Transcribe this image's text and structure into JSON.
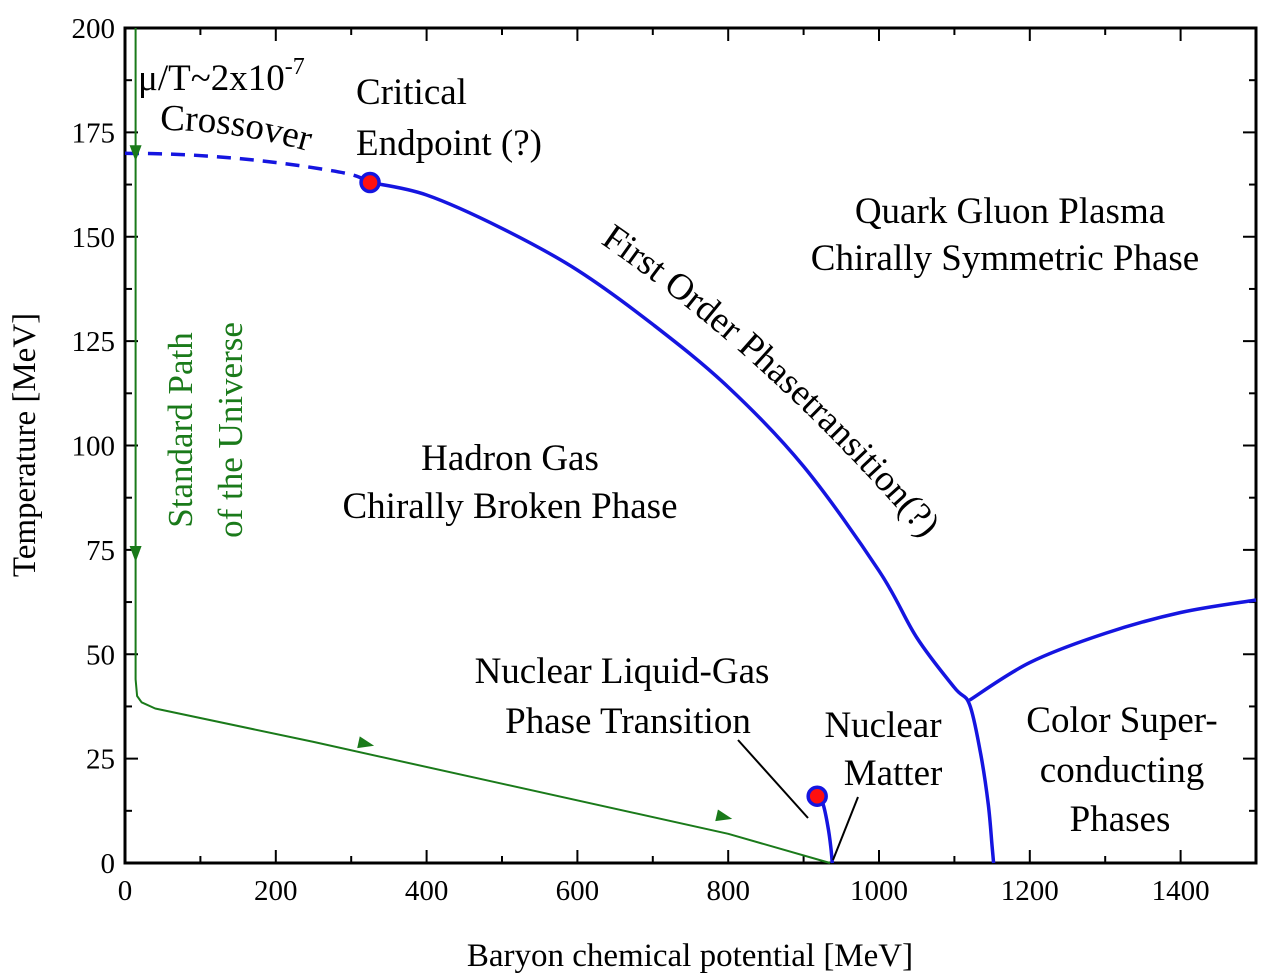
{
  "chart_data": {
    "type": "line",
    "xlabel": "Baryon chemical potential [MeV]",
    "ylabel": "Temperature [MeV]",
    "xlim": [
      0,
      1500
    ],
    "ylim": [
      0,
      200
    ],
    "xticks": [
      0,
      200,
      400,
      600,
      800,
      1000,
      1200,
      1400
    ],
    "yticks": [
      0,
      25,
      50,
      75,
      100,
      125,
      150,
      175,
      200
    ],
    "grid": false,
    "series": [
      {
        "style": "dashed",
        "color": "#1515e0",
        "x": [
          0,
          60,
          120,
          180,
          240,
          300,
          325
        ],
        "y": [
          170,
          169.8,
          169.2,
          168.2,
          166.8,
          164.9,
          163
        ]
      },
      {
        "style": "solid",
        "color": "#1515e0",
        "x": [
          325,
          400,
          500,
          600,
          700,
          800,
          900,
          1000,
          1050,
          1100,
          1120,
          1135,
          1145,
          1150,
          1152
        ],
        "y": [
          163,
          160,
          152,
          142,
          129,
          114,
          95,
          70,
          54,
          42,
          38,
          26,
          14,
          4,
          0
        ]
      },
      {
        "style": "solid",
        "color": "#1515e0",
        "x": [
          1120,
          1200,
          1300,
          1400,
          1500
        ],
        "y": [
          39,
          48,
          55,
          60,
          63
        ]
      },
      {
        "style": "solid",
        "color": "#1515e0",
        "x": [
          920,
          926,
          932,
          936,
          938
        ],
        "y": [
          16,
          14,
          9,
          4,
          0
        ]
      },
      {
        "style": "solid-arrows",
        "color": "#1a7a1a",
        "x": [
          14,
          14,
          14,
          14,
          16,
          22,
          40,
          250,
          500,
          800,
          935
        ],
        "y": [
          200,
          170,
          75,
          44,
          40,
          38.5,
          37,
          29,
          19,
          7,
          0
        ]
      }
    ],
    "points": [
      {
        "x": 325,
        "y": 163
      },
      {
        "x": 918,
        "y": 16
      }
    ],
    "annotations": {
      "mu_prefix": "μ/T~2x10",
      "mu_exp": "-7",
      "crossover": "Crossover",
      "critical_1": "Critical",
      "critical_2": "Endpoint (?)",
      "qgp_1": "Quark Gluon Plasma",
      "qgp_2": "Chirally Symmetric Phase",
      "first_order": "First Order Phasetransition(?)",
      "hadron_1": "Hadron Gas",
      "hadron_2": "Chirally Broken Phase",
      "path_1": "Standard Path",
      "path_2": "of the Universe",
      "liquid_1": "Nuclear Liquid-Gas",
      "liquid_2": "Phase Transition",
      "nuclear_1": "Nuclear",
      "nuclear_2": "Matter",
      "color_1": "Color Super-",
      "color_2": "conducting",
      "color_3": "Phases"
    }
  }
}
